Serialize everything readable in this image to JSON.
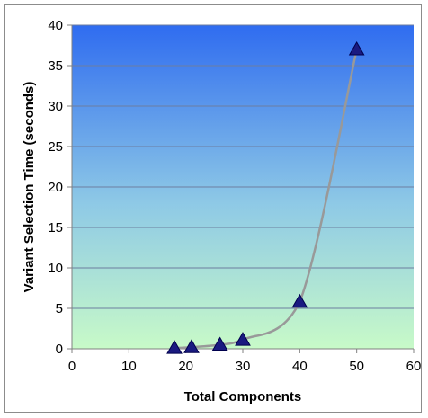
{
  "chart_data": {
    "type": "scatter",
    "title": "",
    "xlabel": "Total Components",
    "ylabel": "Variant Selection Time (seconds)",
    "xlim": [
      0,
      60
    ],
    "ylim": [
      0,
      40
    ],
    "x_ticks": [
      0,
      10,
      20,
      30,
      40,
      50,
      60
    ],
    "y_ticks": [
      0,
      5,
      10,
      15,
      20,
      25,
      30,
      35,
      40
    ],
    "grid": "horizontal",
    "legend": "none",
    "series": [
      {
        "marker": "triangle",
        "x": [
          18,
          21,
          26,
          30,
          40,
          50
        ],
        "y": [
          0.1,
          0.2,
          0.5,
          1.1,
          5.8,
          37
        ]
      }
    ],
    "trendline": {
      "type": "smooth",
      "color": "#999999"
    },
    "colors": {
      "plot_top": "#2f6cf0",
      "plot_bottom": "#c8fac8",
      "marker_fill": "#1a1a80",
      "marker_stroke": "#00004d",
      "gridline": "#6d7ea0",
      "axis": "#808080"
    }
  }
}
